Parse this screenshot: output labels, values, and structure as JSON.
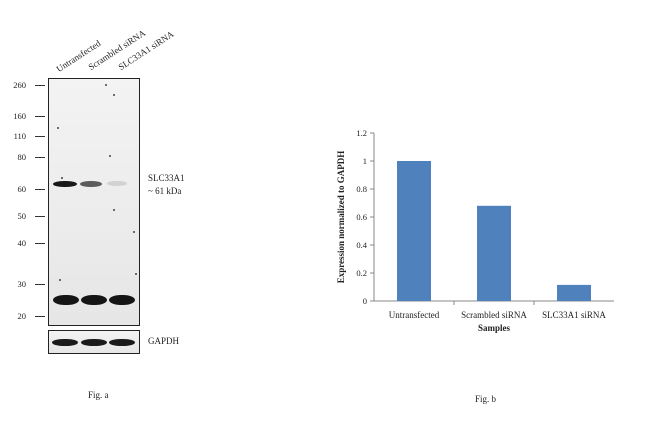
{
  "fig_a": {
    "lanes": [
      "Untransfected",
      "Scrambled siRNA",
      "SLC33A1 siRNA"
    ],
    "mw_markers": [
      "260",
      "160",
      "110",
      "80",
      "60",
      "50",
      "40",
      "30",
      "20"
    ],
    "target_label": "SLC33A1",
    "target_size": "~ 61 kDa",
    "loading_control": "GAPDH",
    "target_band_intensity": [
      1.0,
      0.68,
      0.12
    ],
    "caption": "Fig. a"
  },
  "fig_b": {
    "caption": "Fig. b"
  },
  "chart_data": {
    "type": "bar",
    "categories": [
      "Untransfected",
      "Scrambled siRNA",
      "SLC33A1 siRNA"
    ],
    "values": [
      1.0,
      0.68,
      0.115
    ],
    "xlabel": "Samples",
    "ylabel": "Expression  normalized to GAPDH",
    "ylim": [
      0,
      1.2
    ],
    "yticks": [
      "0",
      "0.2",
      "0.4",
      "0.6",
      "0.8",
      "1",
      "1.2"
    ],
    "bar_color": "#4f81bd",
    "grid": false,
    "legend": "none"
  }
}
